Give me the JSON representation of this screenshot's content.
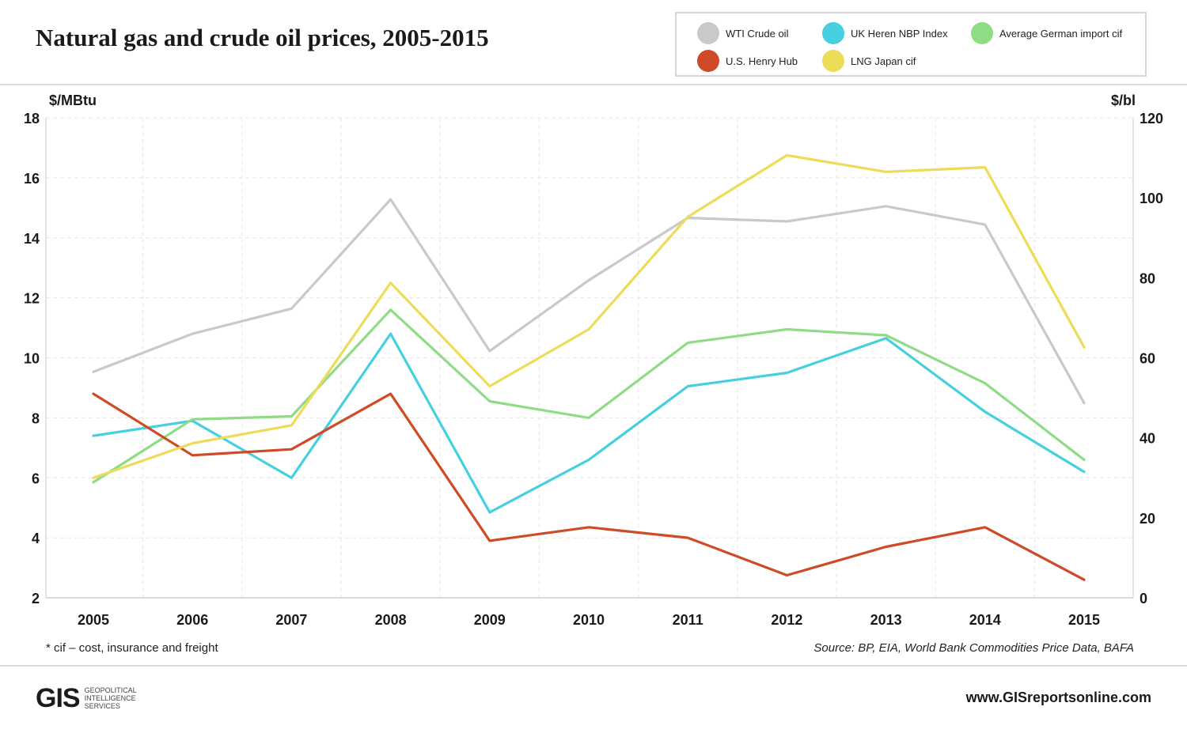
{
  "title": "Natural gas and crude oil prices, 2005-2015",
  "footnote": "* cif – cost, insurance and freight",
  "source": "Source: BP, EIA, World Bank Commodities Price Data, BAFA",
  "website": "www.GISreportsonline.com",
  "logo": {
    "mark": "GIS",
    "text": "GEOPOLITICAL\nINTELLIGENCE\nSERVICES"
  },
  "chart_data": {
    "type": "line",
    "title": "Natural gas and crude oil prices, 2005-2015",
    "x": [
      "2005",
      "2006",
      "2007",
      "2008",
      "2009",
      "2010",
      "2011",
      "2012",
      "2013",
      "2014",
      "2015"
    ],
    "y_left": {
      "label": "$/MBtu",
      "ylim": [
        2,
        18
      ],
      "ticks": [
        2,
        4,
        6,
        8,
        10,
        12,
        14,
        16,
        18
      ]
    },
    "y_right": {
      "label": "$/bl",
      "ylim": [
        0,
        120
      ],
      "ticks": [
        0,
        20,
        40,
        60,
        80,
        100,
        120
      ]
    },
    "grid": true,
    "legend_position": "top-right",
    "series": [
      {
        "name": "WTI Crude oil",
        "color": "#c9c9c9",
        "axis": "right",
        "values": [
          56.5,
          66.0,
          72.3,
          99.6,
          61.7,
          79.4,
          95.0,
          94.1,
          97.9,
          93.3,
          48.7
        ]
      },
      {
        "name": "UK Heren NBP Index",
        "color": "#45cfe0",
        "axis": "left",
        "values": [
          7.4,
          7.9,
          6.0,
          10.8,
          4.85,
          6.6,
          9.05,
          9.5,
          10.65,
          8.2,
          6.2
        ]
      },
      {
        "name": "Average German import cif",
        "color": "#8fdb86",
        "axis": "left",
        "values": [
          5.85,
          7.95,
          8.05,
          11.6,
          8.55,
          8.0,
          10.5,
          10.95,
          10.75,
          9.15,
          6.6
        ]
      },
      {
        "name": "U.S. Henry Hub",
        "color": "#cf4a26",
        "axis": "left",
        "values": [
          8.8,
          6.75,
          6.95,
          8.8,
          3.9,
          4.35,
          4.0,
          2.75,
          3.7,
          4.35,
          2.6
        ]
      },
      {
        "name": "LNG Japan cif",
        "color": "#ecdc57",
        "axis": "left",
        "values": [
          6.0,
          7.15,
          7.75,
          12.5,
          9.05,
          10.95,
          14.7,
          16.75,
          16.2,
          16.35,
          10.35
        ]
      }
    ]
  }
}
